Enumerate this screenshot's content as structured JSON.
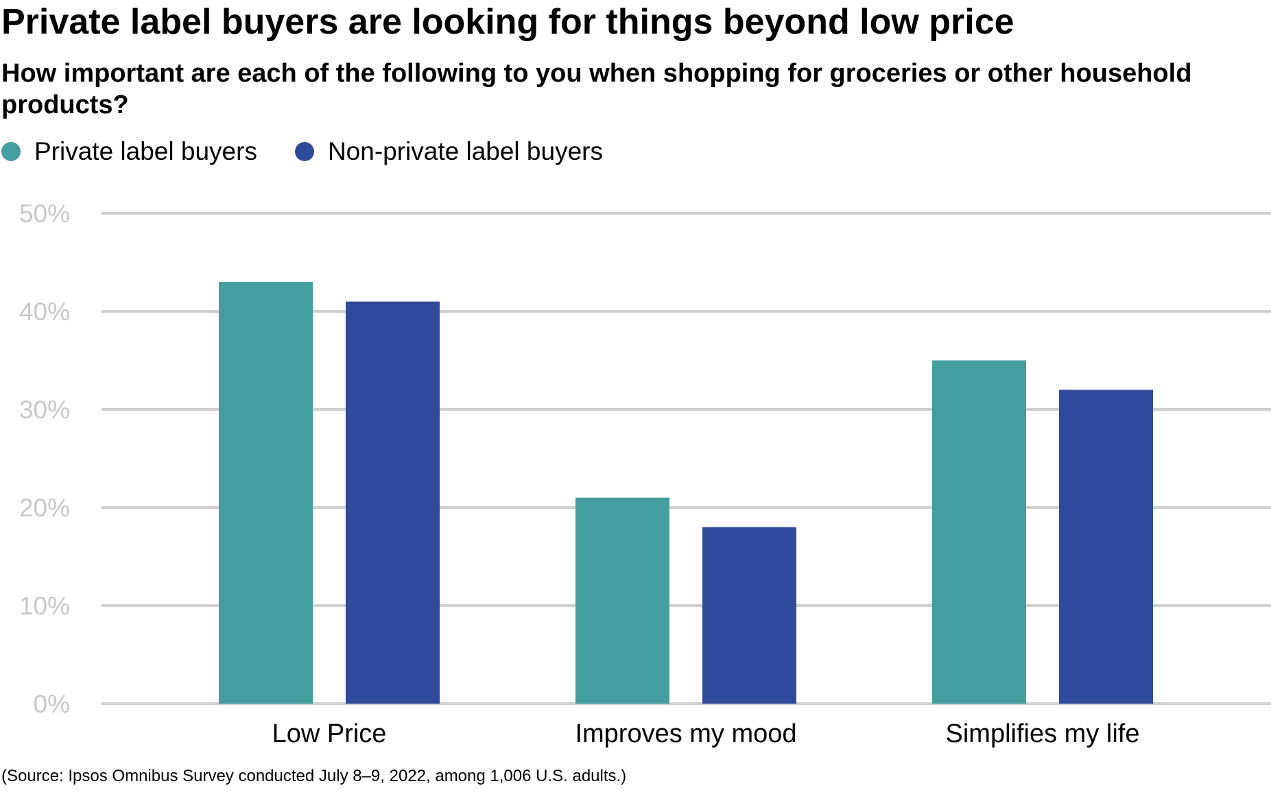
{
  "chart_data": {
    "type": "bar",
    "title": "Private label buyers are looking for things beyond low price",
    "subtitle": "How important are each of the following to you when shopping for groceries or other household products?",
    "categories": [
      "Low Price",
      "Improves my mood",
      "Simplifies my life"
    ],
    "series": [
      {
        "name": "Private label buyers",
        "values": [
          43,
          21,
          35
        ],
        "color": "#439e9d"
      },
      {
        "name": "Non-private label buyers",
        "values": [
          41,
          18,
          32
        ],
        "color": "#2f4a9b"
      }
    ],
    "ylim": [
      0,
      50
    ],
    "yticks": [
      0,
      10,
      20,
      30,
      40,
      50
    ],
    "ytick_labels": [
      "0%",
      "10%",
      "20%",
      "30%",
      "40%",
      "50%"
    ],
    "grid": true,
    "legend_placement": "top-left",
    "source": "(Source: Ipsos Omnibus Survey conducted July 8–9, 2022, among 1,006 U.S. adults.)"
  }
}
